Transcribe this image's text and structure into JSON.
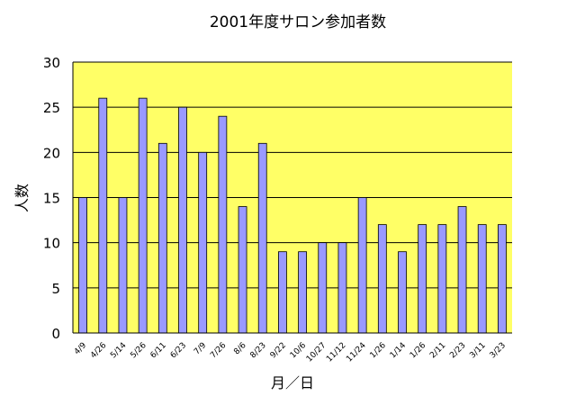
{
  "chart_data": {
    "type": "bar",
    "title": "2001年度サロン参加者数",
    "xlabel": "月／日",
    "ylabel": "人数",
    "ylim": [
      0,
      30
    ],
    "yticks": [
      "0",
      "5",
      "10",
      "15",
      "20",
      "25",
      "30"
    ],
    "grid": true,
    "legend": "none",
    "plot_background": "#ffff66",
    "bar_color": "#9999ff",
    "bar_outline": "#000000",
    "categories": [
      "4/9",
      "4/26",
      "5/14",
      "5/26",
      "6/11",
      "6/23",
      "7/9",
      "7/26",
      "8/6",
      "8/23",
      "9/22",
      "10/6",
      "10/27",
      "11/12",
      "11/24",
      "1/26",
      "1/14",
      "1/26",
      "2/11",
      "2/23",
      "3/11",
      "3/23"
    ],
    "values": [
      15,
      26,
      15,
      26,
      21,
      25,
      20,
      24,
      14,
      21,
      9,
      9,
      10,
      10,
      15,
      12,
      9,
      12,
      12,
      14,
      12,
      12
    ]
  }
}
